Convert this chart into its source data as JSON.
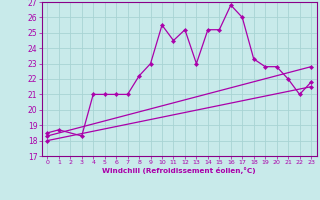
{
  "xlabel": "Windchill (Refroidissement éolien,°C)",
  "background_color": "#c8eaea",
  "line_color": "#aa00aa",
  "grid_color": "#a8d4d4",
  "spine_color": "#880088",
  "xlim": [
    -0.5,
    23.5
  ],
  "ylim": [
    17,
    27
  ],
  "xticks": [
    0,
    1,
    2,
    3,
    4,
    5,
    6,
    7,
    8,
    9,
    10,
    11,
    12,
    13,
    14,
    15,
    16,
    17,
    18,
    19,
    20,
    21,
    22,
    23
  ],
  "yticks": [
    17,
    18,
    19,
    20,
    21,
    22,
    23,
    24,
    25,
    26,
    27
  ],
  "line1_x": [
    0,
    1,
    3,
    4,
    5,
    6,
    7,
    8,
    9,
    10,
    11,
    12,
    13,
    14,
    15,
    16,
    17,
    18,
    19,
    20,
    21,
    22,
    23
  ],
  "line1_y": [
    18.5,
    18.7,
    18.3,
    21.0,
    21.0,
    21.0,
    21.0,
    22.2,
    23.0,
    25.5,
    24.5,
    25.2,
    23.0,
    25.2,
    25.2,
    26.8,
    26.0,
    23.3,
    22.8,
    22.8,
    22.0,
    21.0,
    21.8
  ],
  "line2_x": [
    0,
    23
  ],
  "line2_y": [
    18.3,
    22.8
  ],
  "line3_x": [
    0,
    23
  ],
  "line3_y": [
    18.0,
    21.5
  ]
}
